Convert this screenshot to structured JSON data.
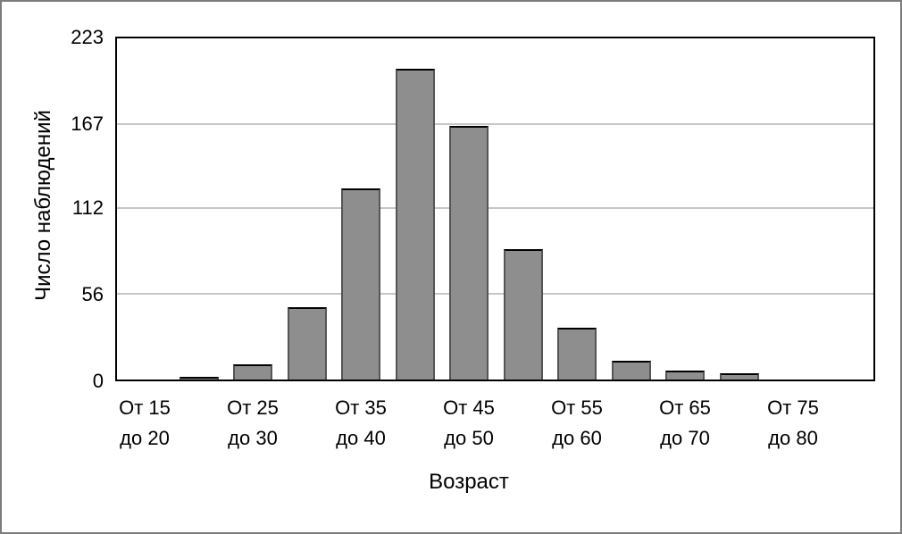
{
  "chart_data": {
    "type": "bar",
    "subtype": "histogram",
    "title": "",
    "xlabel": "Возраст",
    "ylabel": "Число наблюдений",
    "ylim": [
      0,
      223
    ],
    "grid": "horizontal",
    "legend": "none",
    "num_bins": 13,
    "ytick_labels": [
      "0",
      "56",
      "112",
      "167",
      "223"
    ],
    "ytick_values": [
      0,
      56,
      112,
      167,
      223
    ],
    "gridline_values": [
      56,
      112,
      167
    ],
    "values": [
      0,
      2,
      10,
      47,
      125,
      203,
      166,
      85,
      34,
      12,
      6,
      4,
      0
    ],
    "xtick_labels": [
      "От 15 до 20",
      "От 25 до 30",
      "От 35 до 40",
      "От 45 до 50",
      "От 55 до 60",
      "От 65 до 70",
      "От 75 до 80"
    ],
    "xtick_bin_indexes": [
      0,
      2,
      4,
      6,
      8,
      10,
      12
    ],
    "bar_color": "#8e8e8e",
    "bar_border_color": "#555555",
    "bar_top_border_color": "#000000",
    "grid_color": "#c6c6c6",
    "frame_color": "#7c7c7c",
    "axis_color": "#000000"
  }
}
